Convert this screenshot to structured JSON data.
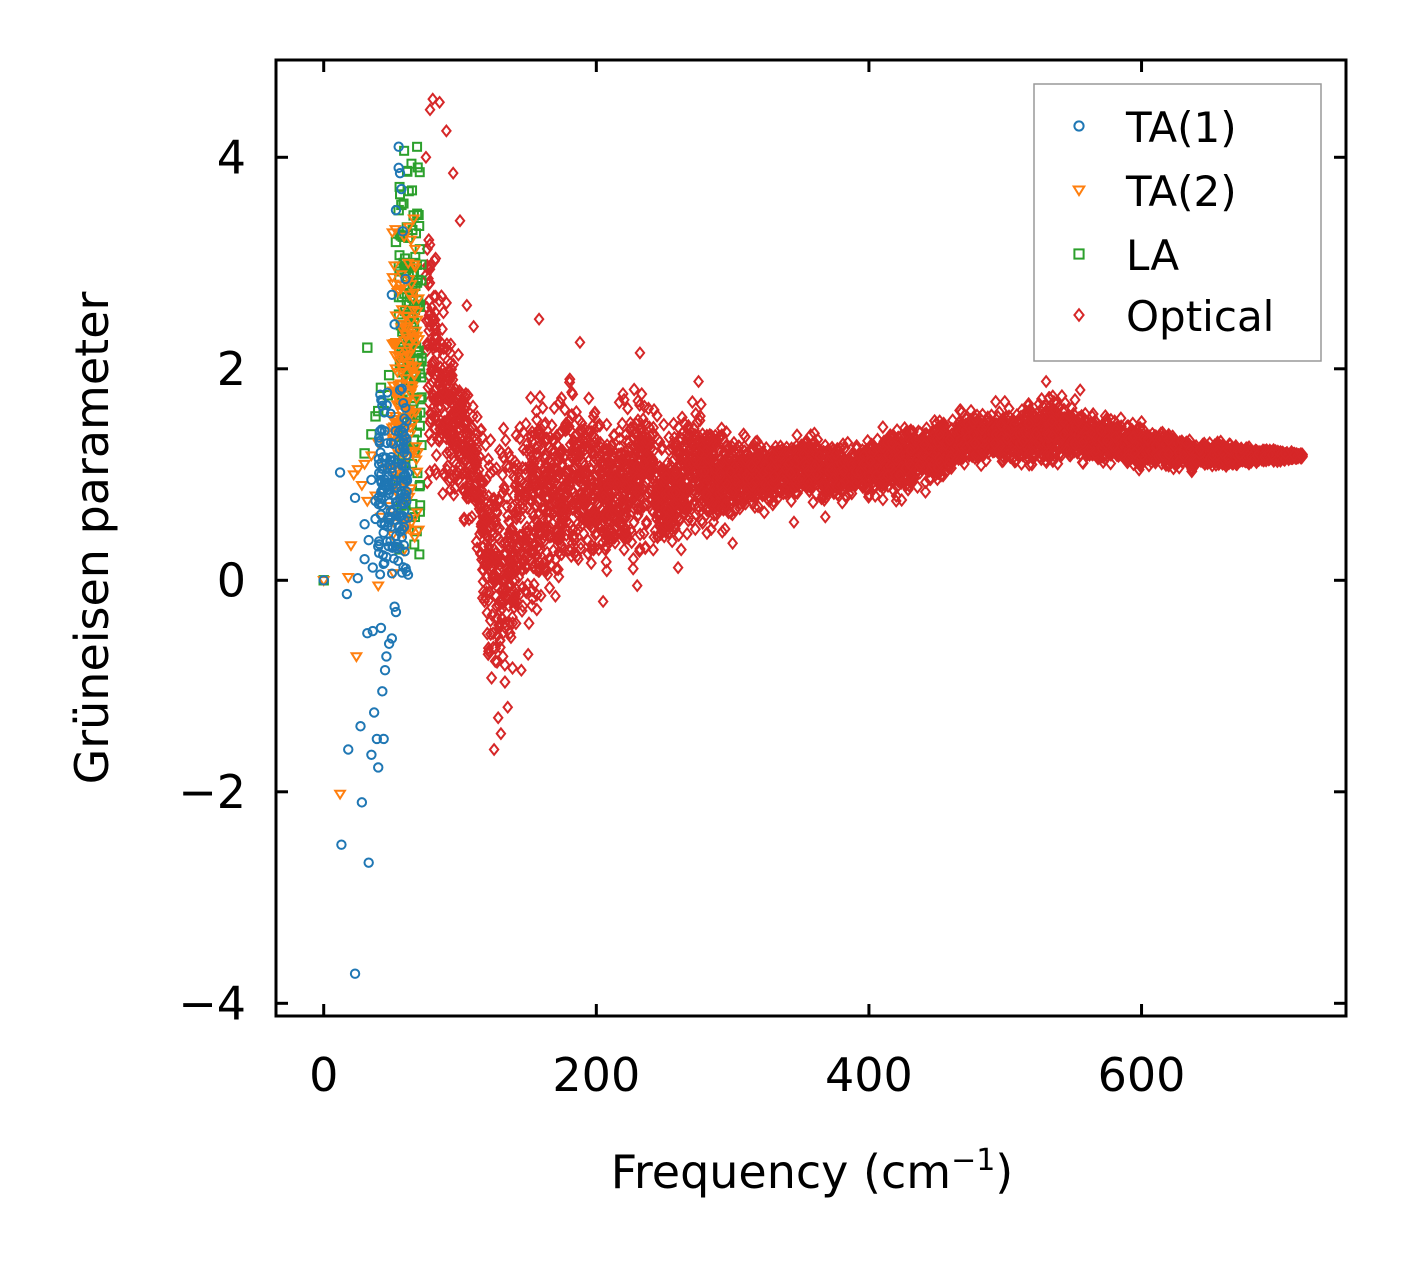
{
  "chart_data": {
    "type": "scatter",
    "title": "",
    "xlabel": "Frequency (cm",
    "xlabel_sup": "−1",
    "xlabel_close": ")",
    "ylabel": "Grüneisen parameter",
    "xlim": [
      -35,
      750
    ],
    "ylim": [
      -4.12,
      4.92
    ],
    "x_ticks": [
      0,
      200,
      400,
      600
    ],
    "x_tick_labels": [
      "0",
      "200",
      "400",
      "600"
    ],
    "y_ticks": [
      -4,
      -2,
      0,
      2,
      4
    ],
    "y_tick_labels": [
      "−4",
      "−2",
      "0",
      "2",
      "4"
    ],
    "grid": false,
    "legend_position": "top-right",
    "series": [
      {
        "name": "TA(1)",
        "marker": "circle",
        "color": "#1f77b4",
        "points": [
          [
            0,
            0
          ],
          [
            12,
            1.02
          ],
          [
            13,
            -2.5
          ],
          [
            17,
            -0.13
          ],
          [
            18,
            -1.6
          ],
          [
            23,
            -3.72
          ],
          [
            23,
            0.78
          ],
          [
            25,
            0.02
          ],
          [
            27,
            -1.38
          ],
          [
            28,
            -2.1
          ],
          [
            30,
            0.53
          ],
          [
            32,
            -0.5
          ],
          [
            33,
            -2.67
          ],
          [
            35,
            -1.65
          ],
          [
            36,
            -0.48
          ],
          [
            37,
            -1.25
          ],
          [
            38,
            0.58
          ],
          [
            39,
            -1.5
          ],
          [
            40,
            -1.77
          ],
          [
            42,
            -0.45
          ],
          [
            43,
            -1.05
          ],
          [
            44,
            -1.5
          ],
          [
            45,
            -0.85
          ],
          [
            46,
            -0.72
          ],
          [
            48,
            -0.6
          ],
          [
            50,
            -0.55
          ],
          [
            50,
            2.7
          ],
          [
            52,
            2.42
          ],
          [
            53,
            3.5
          ],
          [
            55,
            3.9
          ],
          [
            55,
            4.1
          ],
          [
            56,
            3.85
          ],
          [
            57,
            3.7
          ],
          [
            58,
            3.3
          ],
          [
            60,
            2.85
          ],
          [
            30,
            0.2
          ],
          [
            33,
            0.38
          ],
          [
            36,
            0.12
          ],
          [
            40,
            0.32
          ],
          [
            44,
            0.45
          ],
          [
            46,
            0.22
          ],
          [
            48,
            0.6
          ],
          [
            52,
            -0.25
          ],
          [
            53,
            -0.3
          ],
          [
            54,
            0.3
          ],
          [
            56,
            1.8
          ],
          [
            58,
            1.4
          ],
          [
            35,
            0.95
          ],
          [
            38,
            0.75
          ],
          [
            42,
            0.62
          ],
          [
            47,
            0.85
          ]
        ],
        "dense_band": {
          "x_range": [
            40,
            62
          ],
          "y_center": 0.9,
          "y_spread": 0.5
        }
      },
      {
        "name": "TA(2)",
        "marker": "triangle-down",
        "color": "#ff7f0e",
        "points": [
          [
            0,
            0
          ],
          [
            12,
            -2.02
          ],
          [
            18,
            0.03
          ],
          [
            20,
            0.33
          ],
          [
            22,
            1.0
          ],
          [
            24,
            -0.72
          ],
          [
            25,
            1.05
          ],
          [
            28,
            0.9
          ],
          [
            30,
            1.1
          ],
          [
            32,
            0.75
          ],
          [
            35,
            1.18
          ],
          [
            38,
            0.8
          ],
          [
            40,
            1.3
          ],
          [
            40,
            -0.05
          ],
          [
            42,
            0.6
          ],
          [
            45,
            1.1
          ],
          [
            48,
            0.7
          ],
          [
            55,
            1.5
          ],
          [
            60,
            2.5
          ],
          [
            62,
            3.0
          ],
          [
            64,
            3.22
          ],
          [
            66,
            3.42
          ],
          [
            63,
            2.7
          ]
        ],
        "dense_band": {
          "x_range": [
            50,
            70
          ],
          "y_center": 1.7,
          "y_spread": 0.9
        }
      },
      {
        "name": "LA",
        "marker": "square",
        "color": "#2ca02c",
        "points": [
          [
            0,
            0
          ],
          [
            30,
            1.2
          ],
          [
            32,
            2.2
          ],
          [
            35,
            1.38
          ],
          [
            38,
            1.55
          ],
          [
            40,
            1.6
          ],
          [
            42,
            1.82
          ],
          [
            44,
            1.6
          ],
          [
            47,
            1.75
          ],
          [
            48,
            1.94
          ],
          [
            53,
            3.2
          ],
          [
            55,
            3.5
          ],
          [
            57,
            3.55
          ],
          [
            58,
            3.25
          ],
          [
            62,
            2.95
          ],
          [
            66,
            3.45
          ],
          [
            67,
            3.0
          ],
          [
            60,
            0.72
          ],
          [
            65,
            0.72
          ]
        ],
        "dense_band": {
          "x_range": [
            55,
            72
          ],
          "y_center": 2.2,
          "y_spread": 1.0
        }
      },
      {
        "name": "Optical",
        "marker": "diamond",
        "color": "#d62728",
        "points": [
          [
            80,
            4.55
          ],
          [
            85,
            4.52
          ],
          [
            78,
            4.45
          ],
          [
            90,
            4.25
          ],
          [
            75,
            4.0
          ],
          [
            95,
            3.85
          ],
          [
            100,
            3.4
          ],
          [
            105,
            2.6
          ],
          [
            110,
            2.4
          ],
          [
            158,
            2.47
          ],
          [
            188,
            2.25
          ],
          [
            232,
            2.15
          ],
          [
            275,
            1.88
          ],
          [
            125,
            -1.6
          ],
          [
            135,
            -1.2
          ],
          [
            130,
            -1.45
          ],
          [
            128,
            -1.3
          ],
          [
            150,
            -0.7
          ],
          [
            145,
            -0.85
          ],
          [
            170,
            -0.15
          ],
          [
            205,
            -0.2
          ],
          [
            230,
            -0.05
          ],
          [
            260,
            0.12
          ],
          [
            300,
            0.35
          ],
          [
            345,
            0.55
          ],
          [
            368,
            0.6
          ],
          [
            380,
            0.9
          ],
          [
            420,
            0.75
          ],
          [
            470,
            1.1
          ],
          [
            530,
            1.88
          ],
          [
            555,
            1.8
          ],
          [
            600,
            1.5
          ],
          [
            650,
            1.3
          ],
          [
            700,
            1.22
          ],
          [
            718,
            1.17
          ]
        ],
        "envelope": [
          [
            75,
            3.9,
            0.5
          ],
          [
            85,
            3.2,
            0.6
          ],
          [
            95,
            2.5,
            0.5
          ],
          [
            110,
            1.9,
            0.4
          ],
          [
            125,
            1.6,
            -1.6
          ],
          [
            140,
            1.7,
            -1.2
          ],
          [
            155,
            2.2,
            -0.9
          ],
          [
            170,
            2.0,
            -0.3
          ],
          [
            190,
            2.1,
            -0.25
          ],
          [
            210,
            1.85,
            -0.2
          ],
          [
            230,
            2.1,
            0.0
          ],
          [
            250,
            1.6,
            0.1
          ],
          [
            270,
            1.85,
            0.25
          ],
          [
            290,
            1.6,
            0.3
          ],
          [
            310,
            1.45,
            0.55
          ],
          [
            330,
            1.4,
            0.6
          ],
          [
            350,
            1.45,
            0.7
          ],
          [
            370,
            1.45,
            0.62
          ],
          [
            390,
            1.3,
            0.75
          ],
          [
            410,
            1.5,
            0.7
          ],
          [
            430,
            1.55,
            0.75
          ],
          [
            450,
            1.55,
            0.85
          ],
          [
            470,
            1.7,
            1.0
          ],
          [
            490,
            1.7,
            1.05
          ],
          [
            510,
            1.7,
            1.0
          ],
          [
            530,
            1.9,
            1.0
          ],
          [
            550,
            1.75,
            1.05
          ],
          [
            570,
            1.6,
            1.05
          ],
          [
            590,
            1.55,
            1.0
          ],
          [
            610,
            1.45,
            1.05
          ],
          [
            630,
            1.4,
            1.0
          ],
          [
            650,
            1.35,
            1.05
          ],
          [
            670,
            1.3,
            1.05
          ],
          [
            690,
            1.27,
            1.1
          ],
          [
            705,
            1.23,
            1.12
          ],
          [
            718,
            1.2,
            1.15
          ]
        ]
      }
    ]
  },
  "legend": {
    "items": [
      {
        "label": "TA(1)",
        "color": "#1f77b4",
        "marker": "circle"
      },
      {
        "label": "TA(2)",
        "color": "#ff7f0e",
        "marker": "triangle-down"
      },
      {
        "label": "LA",
        "color": "#2ca02c",
        "marker": "square"
      },
      {
        "label": "Optical",
        "color": "#d62728",
        "marker": "diamond"
      }
    ]
  }
}
